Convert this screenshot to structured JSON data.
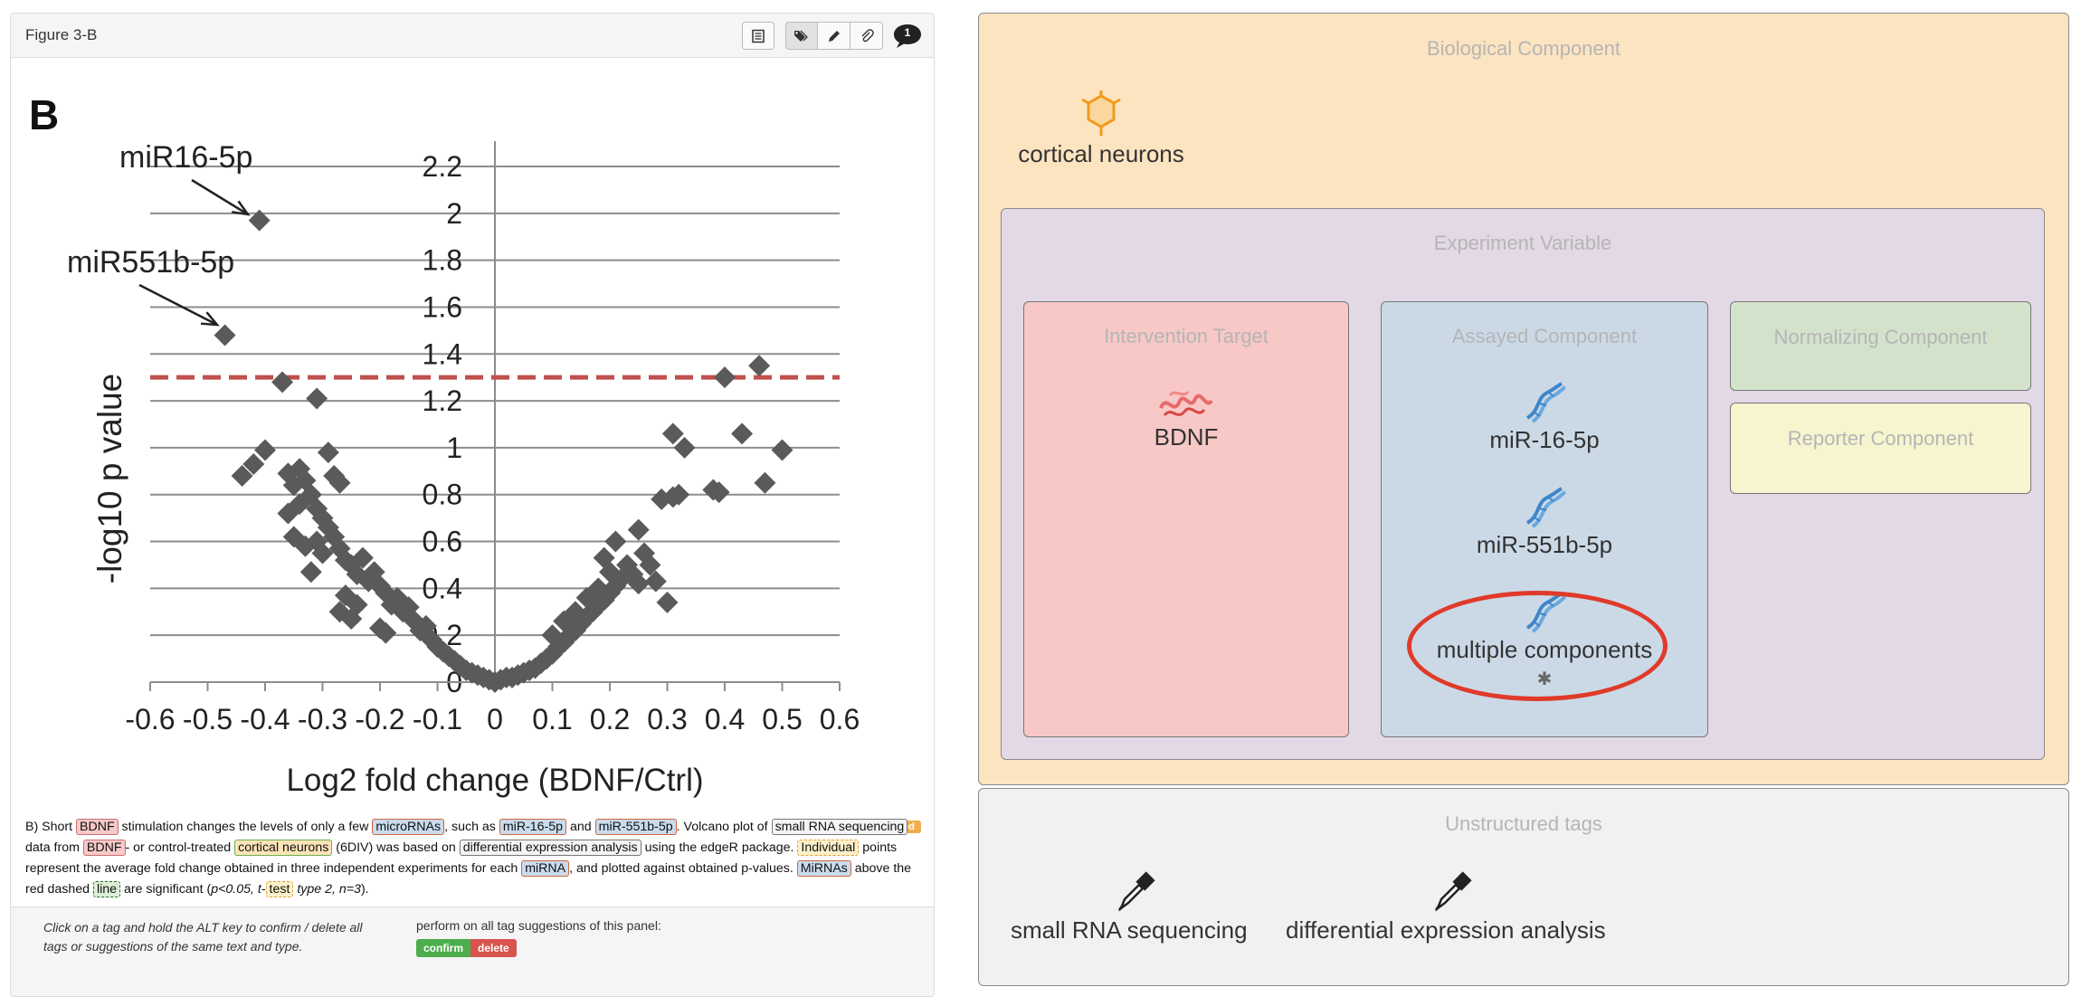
{
  "figure": {
    "title": "Figure 3-B",
    "tool_icons": [
      "table-icon",
      "tag-icon",
      "pencil-icon",
      "paperclip-icon"
    ],
    "comment_count": "1"
  },
  "chart_data": {
    "type": "scatter",
    "panel_label": "B",
    "xlabel": "Log2 fold change (BDNF/Ctrl)",
    "ylabel": "-log10 p value",
    "xlim": [
      -0.6,
      0.6
    ],
    "ylim": [
      0,
      2.2
    ],
    "x_ticks": [
      "-0.6",
      "-0.5",
      "-0.4",
      "-0.3",
      "-0.2",
      "-0.1",
      "0",
      "0.1",
      "0.2",
      "0.3",
      "0.4",
      "0.5",
      "0.6"
    ],
    "y_ticks": [
      "0",
      "0.2",
      "0.4",
      "0.6",
      "0.8",
      "1",
      "1.2",
      "1.4",
      "1.6",
      "1.8",
      "2",
      "2.2"
    ],
    "threshold_y": 1.3,
    "threshold_color": "#c0504d",
    "marker_color": "#5a5a5a",
    "grid": "horizontal",
    "annotations": [
      {
        "text": "miR16-5p",
        "x": -0.41,
        "y": 1.97
      },
      {
        "text": "miR551b-5p",
        "x": -0.47,
        "y": 1.48
      }
    ],
    "points": [
      [
        -0.41,
        1.97
      ],
      [
        -0.47,
        1.48
      ],
      [
        -0.37,
        1.28
      ],
      [
        -0.31,
        1.21
      ],
      [
        -0.44,
        0.88
      ],
      [
        -0.42,
        0.93
      ],
      [
        -0.4,
        0.99
      ],
      [
        -0.36,
        0.89
      ],
      [
        -0.35,
        0.84
      ],
      [
        -0.34,
        0.91
      ],
      [
        -0.33,
        0.86
      ],
      [
        -0.32,
        0.8
      ],
      [
        -0.36,
        0.72
      ],
      [
        -0.34,
        0.76
      ],
      [
        -0.31,
        0.74
      ],
      [
        -0.29,
        0.98
      ],
      [
        -0.28,
        0.88
      ],
      [
        -0.27,
        0.85
      ],
      [
        -0.3,
        0.7
      ],
      [
        -0.29,
        0.66
      ],
      [
        -0.35,
        0.62
      ],
      [
        -0.33,
        0.58
      ],
      [
        -0.31,
        0.6
      ],
      [
        -0.3,
        0.55
      ],
      [
        -0.28,
        0.62
      ],
      [
        -0.27,
        0.57
      ],
      [
        -0.26,
        0.52
      ],
      [
        -0.32,
        0.47
      ],
      [
        -0.25,
        0.5
      ],
      [
        -0.24,
        0.46
      ],
      [
        -0.23,
        0.53
      ],
      [
        -0.22,
        0.43
      ],
      [
        -0.21,
        0.47
      ],
      [
        -0.2,
        0.41
      ],
      [
        -0.26,
        0.37
      ],
      [
        -0.24,
        0.33
      ],
      [
        -0.19,
        0.38
      ],
      [
        -0.18,
        0.33
      ],
      [
        -0.17,
        0.36
      ],
      [
        -0.16,
        0.3
      ],
      [
        -0.15,
        0.32
      ],
      [
        -0.14,
        0.26
      ],
      [
        -0.27,
        0.3
      ],
      [
        -0.25,
        0.27
      ],
      [
        -0.2,
        0.23
      ],
      [
        -0.19,
        0.21
      ],
      [
        -0.13,
        0.22
      ],
      [
        -0.12,
        0.24
      ],
      [
        -0.11,
        0.18
      ],
      [
        -0.1,
        0.15
      ],
      [
        -0.09,
        0.13
      ],
      [
        -0.08,
        0.11
      ],
      [
        -0.07,
        0.09
      ],
      [
        -0.06,
        0.07
      ],
      [
        -0.05,
        0.05
      ],
      [
        -0.04,
        0.04
      ],
      [
        -0.03,
        0.03
      ],
      [
        -0.02,
        0.02
      ],
      [
        -0.01,
        0.01
      ],
      [
        0,
        0
      ],
      [
        0.01,
        0.01
      ],
      [
        0.02,
        0.02
      ],
      [
        0.03,
        0.02
      ],
      [
        0.04,
        0.03
      ],
      [
        0.05,
        0.04
      ],
      [
        0.06,
        0.05
      ],
      [
        0.07,
        0.06
      ],
      [
        0.08,
        0.08
      ],
      [
        0.09,
        0.1
      ],
      [
        0.1,
        0.12
      ],
      [
        0.11,
        0.15
      ],
      [
        0.12,
        0.17
      ],
      [
        0.13,
        0.2
      ],
      [
        0.14,
        0.22
      ],
      [
        0.15,
        0.25
      ],
      [
        0.16,
        0.28
      ],
      [
        0.17,
        0.3
      ],
      [
        0.18,
        0.33
      ],
      [
        0.19,
        0.35
      ],
      [
        0.2,
        0.38
      ],
      [
        0.21,
        0.41
      ],
      [
        0.22,
        0.44
      ],
      [
        0.2,
        0.47
      ],
      [
        0.19,
        0.53
      ],
      [
        0.21,
        0.6
      ],
      [
        0.23,
        0.5
      ],
      [
        0.24,
        0.46
      ],
      [
        0.25,
        0.42
      ],
      [
        0.26,
        0.55
      ],
      [
        0.27,
        0.5
      ],
      [
        0.25,
        0.65
      ],
      [
        0.28,
        0.43
      ],
      [
        0.3,
        0.34
      ],
      [
        0.14,
        0.3
      ],
      [
        0.16,
        0.36
      ],
      [
        0.18,
        0.4
      ],
      [
        0.12,
        0.26
      ],
      [
        0.1,
        0.2
      ],
      [
        0.29,
        0.78
      ],
      [
        0.31,
        0.79
      ],
      [
        0.32,
        0.8
      ],
      [
        0.31,
        1.06
      ],
      [
        0.33,
        1.0
      ],
      [
        0.38,
        0.82
      ],
      [
        0.39,
        0.81
      ],
      [
        0.4,
        1.3
      ],
      [
        0.43,
        1.06
      ],
      [
        0.46,
        1.35
      ],
      [
        0.47,
        0.85
      ],
      [
        0.5,
        0.99
      ]
    ]
  },
  "caption": {
    "parts": [
      "B) Short ",
      "BDNF",
      " stimulation changes the levels of only a few ",
      "microRNAs",
      ", such as ",
      "miR-16-5p",
      " and ",
      "miR-551b-5p",
      ". Volcano plot of ",
      "small RNA sequencing",
      " data from ",
      "BDNF",
      "- or control-treated ",
      "cortical neurons",
      " (6DIV) was based on ",
      "differential expression analysis",
      " using the edgeR package. ",
      "Individual",
      " points represent the average fold change obtained in three independent experiments for each ",
      "miRNA",
      ", and plotted against obtained p-values. ",
      "MiRNAs",
      " above the red dashed ",
      "line",
      " are significant (",
      "p<0.05, t-",
      "test",
      " type 2, n=3",
      ")."
    ],
    "edited_badge": "edited"
  },
  "footer": {
    "hint": "Click on a tag and hold the ALT key to confirm / delete all tags or suggestions of the same text and type.",
    "perform_label": "perform on all tag suggestions of this panel:",
    "confirm_label": "confirm",
    "delete_label": "delete"
  },
  "annotation": {
    "biological_component": {
      "title": "Biological Component",
      "items": [
        {
          "label": "cortical neurons",
          "icon": "neuron-icon"
        }
      ]
    },
    "experiment_variable": {
      "title": "Experiment Variable"
    },
    "intervention_target": {
      "title": "Intervention Target",
      "items": [
        {
          "label": "BDNF",
          "icon": "protein-icon"
        }
      ]
    },
    "assayed_component": {
      "title": "Assayed Component",
      "items": [
        {
          "label": "miR-16-5p",
          "icon": "dna-icon"
        },
        {
          "label": "miR-551b-5p",
          "icon": "dna-icon"
        },
        {
          "label": "multiple components",
          "icon": "dna-icon",
          "marker": "✱"
        }
      ]
    },
    "normalizing_component": {
      "title": "Normalizing Component"
    },
    "reporter_component": {
      "title": "Reporter Component"
    },
    "unstructured_tags": {
      "title": "Unstructured tags",
      "items": [
        {
          "label": "small RNA sequencing",
          "icon": "pipette-icon"
        },
        {
          "label": "differential expression analysis",
          "icon": "pipette-icon"
        }
      ]
    },
    "highlight_color": "#e03a2a"
  }
}
